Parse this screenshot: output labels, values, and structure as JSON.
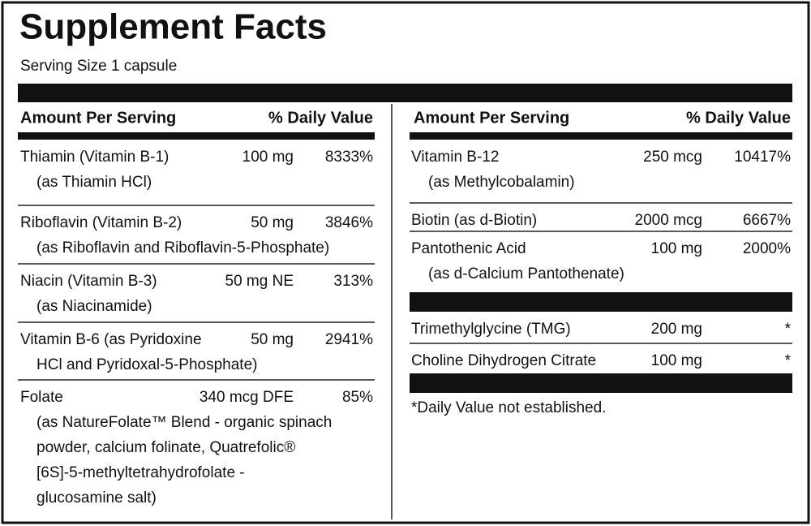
{
  "title": "Supplement Facts",
  "serving_size": "Serving Size 1 capsule",
  "left": {
    "header": {
      "amount": "Amount Per Serving",
      "dv": "% Daily Value"
    },
    "rows": [
      {
        "name": "Thiamin (Vitamin B-1)",
        "sub": [
          "(as Thiamin HCl)"
        ],
        "amount": "100 mg",
        "dv": "8333%"
      },
      {
        "name": "Riboflavin (Vitamin B-2)",
        "sub": [
          "(as Riboflavin and Riboflavin-5-Phosphate)"
        ],
        "amount": "50 mg",
        "dv": "3846%"
      },
      {
        "name": "Niacin (Vitamin B-3)",
        "sub": [
          "(as Niacinamide)"
        ],
        "amount": "50 mg NE",
        "dv": "313%"
      },
      {
        "name": "Vitamin B-6 (as Pyridoxine",
        "sub": [
          "HCl and Pyridoxal-5-Phosphate)"
        ],
        "amount": "50 mg",
        "dv": "2941%"
      },
      {
        "name": "Folate",
        "sub": [
          "(as NatureFolate™ Blend - organic spinach",
          "powder, calcium folinate, Quatrefolic®",
          "[6S]-5-methyltetrahydrofolate -",
          "glucosamine salt)"
        ],
        "amount": "340 mcg DFE",
        "dv": "85%"
      }
    ]
  },
  "right": {
    "header": {
      "amount": "Amount Per Serving",
      "dv": "% Daily Value"
    },
    "groups": [
      [
        {
          "name": "Vitamin B-12",
          "sub": [
            "(as Methylcobalamin)"
          ],
          "amount": "250 mcg",
          "dv": "10417%"
        },
        {
          "name": "Biotin (as d-Biotin)",
          "amount": "2000 mcg",
          "dv": "6667%"
        },
        {
          "name": "Pantothenic Acid",
          "sub": [
            "(as d-Calcium Pantothenate)"
          ],
          "amount": "100 mg",
          "dv": "2000%"
        }
      ],
      [
        {
          "name": "Trimethylglycine (TMG)",
          "amount": "200 mg",
          "dv": "*"
        },
        {
          "name": "Choline Dihydrogen Citrate",
          "amount": "100 mg",
          "dv": "*"
        }
      ]
    ]
  },
  "footnote": "*Daily Value not established."
}
